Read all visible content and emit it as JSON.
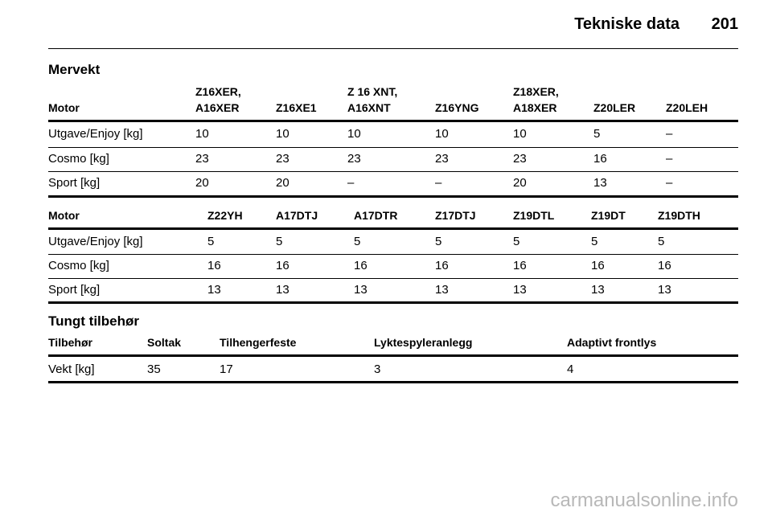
{
  "header": {
    "title": "Tekniske data",
    "page": "201"
  },
  "mervekt_title": "Mervekt",
  "table1": {
    "columns": [
      "Motor",
      "Z16XER,\nA16XER",
      "Z16XE1",
      "Z 16 XNT,\nA16XNT",
      "Z16YNG",
      "Z18XER,\nA18XER",
      "Z20LER",
      "Z20LEH"
    ],
    "rows": [
      [
        "Utgave/Enjoy [kg]",
        10,
        10,
        10,
        10,
        10,
        5,
        "–"
      ],
      [
        "Cosmo [kg]",
        23,
        23,
        23,
        23,
        23,
        16,
        "–"
      ],
      [
        "Sport [kg]",
        20,
        20,
        "–",
        "–",
        20,
        13,
        "–"
      ]
    ]
  },
  "table2": {
    "columns": [
      "Motor",
      "Z22YH",
      "A17DTJ",
      "A17DTR",
      "Z17DTJ",
      "Z19DTL",
      "Z19DT",
      "Z19DTH"
    ],
    "rows": [
      [
        "Utgave/Enjoy [kg]",
        5,
        5,
        5,
        5,
        5,
        5,
        5
      ],
      [
        "Cosmo [kg]",
        16,
        16,
        16,
        16,
        16,
        16,
        16
      ],
      [
        "Sport [kg]",
        13,
        13,
        13,
        13,
        13,
        13,
        13
      ]
    ]
  },
  "tungt_title": "Tungt tilbehør",
  "table3": {
    "columns": [
      "Tilbehør",
      "Soltak",
      "Tilhengerfeste",
      "Lyktespyleranlegg",
      "Adaptivt frontlys"
    ],
    "rows": [
      [
        "Vekt [kg]",
        35,
        17,
        3,
        4
      ]
    ]
  },
  "footer": "carmanualsonline.info"
}
